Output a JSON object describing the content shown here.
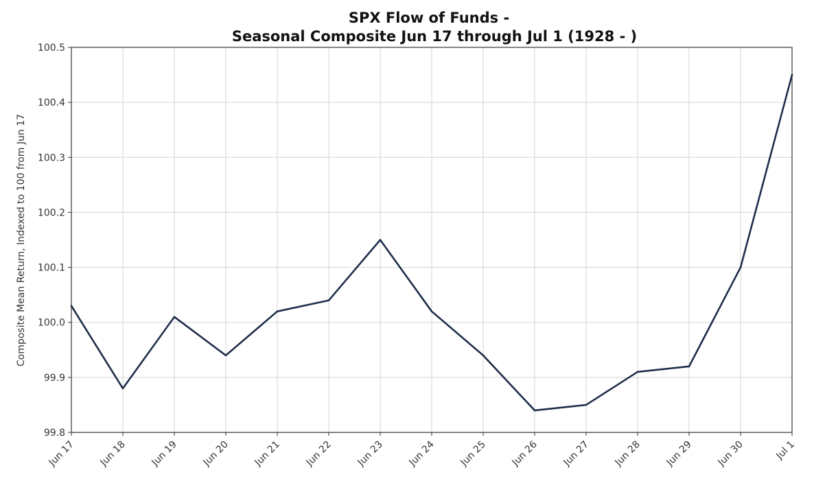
{
  "chart_data": {
    "type": "line",
    "title": "SPX Flow of Funds -",
    "subtitle": "Seasonal Composite Jun 17 through Jul 1 (1928 - )",
    "xlabel": "",
    "ylabel": "Composite Mean Return, Indexed to 100 from Jun 17",
    "categories": [
      "Jun 17",
      "Jun 18",
      "Jun 19",
      "Jun 20",
      "Jun 21",
      "Jun 22",
      "Jun 23",
      "Jun 24",
      "Jun 25",
      "Jun 26",
      "Jun 27",
      "Jun 28",
      "Jun 29",
      "Jun 30",
      "Jul 1"
    ],
    "values": [
      100.03,
      99.88,
      100.01,
      99.94,
      100.02,
      100.04,
      100.15,
      100.02,
      99.94,
      99.84,
      99.85,
      99.91,
      99.92,
      100.1,
      100.45
    ],
    "ylim": [
      99.8,
      100.5
    ],
    "yticks": [
      "99.8",
      "99.9",
      "100.0",
      "100.1",
      "100.2",
      "100.3",
      "100.4",
      "100.5"
    ],
    "grid": true,
    "line_color": "#1f2d4a"
  }
}
